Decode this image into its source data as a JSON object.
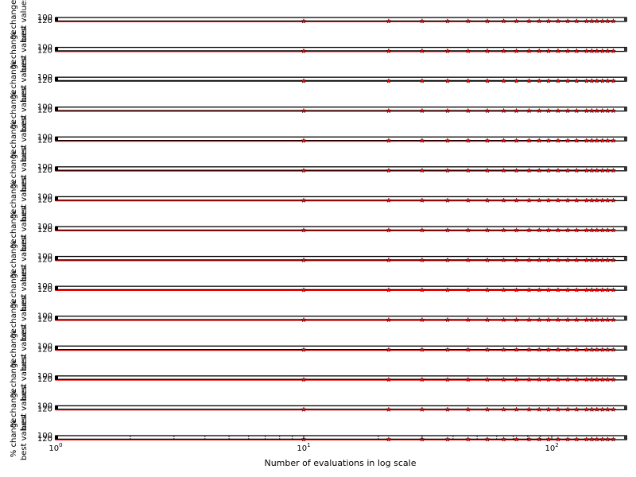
{
  "chart_data": {
    "type": "line",
    "panel_count": 15,
    "x_scale": "log",
    "xlim": [
      1,
      200
    ],
    "x_tick_labels": [
      {
        "value": 1,
        "base": "10",
        "exp": "0"
      },
      {
        "value": 10,
        "base": "10",
        "exp": "1"
      },
      {
        "value": 100,
        "base": "10",
        "exp": "2"
      }
    ],
    "xlabel": "Number of evaluations in log scale",
    "ylabel_line1": "% change",
    "ylabel_line2": "best values",
    "y_tick_labels": [
      "100",
      "120"
    ],
    "ylim": [
      98,
      122
    ],
    "x": [
      1,
      10,
      22,
      30,
      38,
      46,
      55,
      64,
      72,
      81,
      89,
      97,
      106,
      116,
      126,
      138,
      145,
      152,
      160,
      168,
      177
    ],
    "series": [
      {
        "values": [
          100,
          100,
          100,
          100,
          100,
          100,
          100,
          100,
          100,
          100,
          100,
          100,
          100,
          100,
          100,
          100,
          100,
          100,
          100,
          100,
          100
        ],
        "style": "line",
        "color": "#000000"
      },
      {
        "values": [
          100,
          100,
          100,
          100,
          100,
          100,
          100,
          100,
          100,
          100,
          100,
          100,
          100,
          100,
          100,
          100,
          100,
          100,
          100,
          100,
          100
        ],
        "style": "line",
        "color": "#ff0000"
      },
      {
        "values": [
          100,
          100,
          100,
          100,
          100,
          100,
          100,
          100,
          100,
          100,
          100,
          100,
          100,
          100,
          100,
          100,
          100,
          100,
          100,
          100,
          100
        ],
        "style": "markers",
        "marker": "star",
        "color": "#ff0000"
      }
    ],
    "grid": false,
    "legend": "none"
  }
}
